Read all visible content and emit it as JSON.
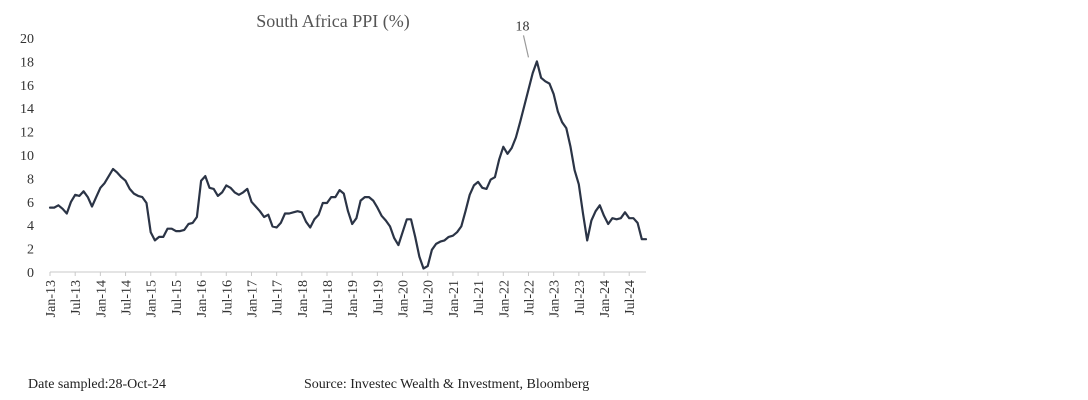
{
  "chart_data": {
    "type": "line",
    "title": "South Africa PPI (%)",
    "xlabel": "",
    "ylabel": "",
    "ylim": [
      0,
      20
    ],
    "yticks": [
      "0",
      "2",
      "4",
      "6",
      "8",
      "10",
      "12",
      "14",
      "16",
      "18",
      "20"
    ],
    "xticks": [
      "Jan-13",
      "Jul-13",
      "Jan-14",
      "Jul-14",
      "Jan-15",
      "Jul-15",
      "Jan-16",
      "Jul-16",
      "Jan-17",
      "Jul-17",
      "Jan-18",
      "Jul-18",
      "Jan-19",
      "Jul-19",
      "Jan-20",
      "Jul-20",
      "Jan-21",
      "Jul-21",
      "Jan-22",
      "Jul-22",
      "Jan-23",
      "Jul-23",
      "Jan-24",
      "Jul-24"
    ],
    "grid": false,
    "line_color": "#2b3446",
    "annotation": {
      "label": "18",
      "x": "Jul-22",
      "y": 18
    },
    "series": [
      {
        "start": "Jan-13",
        "frequency": "monthly",
        "values": [
          5.5,
          5.5,
          5.7,
          5.4,
          5.0,
          6.0,
          6.6,
          6.5,
          6.9,
          6.4,
          5.6,
          6.4,
          7.2,
          7.6,
          8.2,
          8.8,
          8.5,
          8.1,
          7.8,
          7.1,
          6.7,
          6.5,
          6.4,
          5.9,
          3.4,
          2.7,
          3.0,
          3.0,
          3.7,
          3.7,
          3.5,
          3.5,
          3.6,
          4.1,
          4.2,
          4.7,
          7.8,
          8.2,
          7.2,
          7.1,
          6.5,
          6.8,
          7.4,
          7.2,
          6.8,
          6.6,
          6.8,
          7.1,
          6.0,
          5.6,
          5.2,
          4.7,
          4.9,
          3.9,
          3.8,
          4.2,
          5.0,
          5.0,
          5.1,
          5.2,
          5.1,
          4.3,
          3.8,
          4.5,
          4.9,
          5.9,
          5.9,
          6.4,
          6.4,
          7.0,
          6.7,
          5.2,
          4.1,
          4.6,
          6.1,
          6.4,
          6.4,
          6.1,
          5.5,
          4.8,
          4.4,
          3.9,
          2.9,
          2.3,
          3.4,
          4.5,
          4.5,
          3.0,
          1.3,
          0.3,
          0.5,
          1.9,
          2.4,
          2.6,
          2.7,
          3.0,
          3.1,
          3.4,
          3.9,
          5.2,
          6.6,
          7.4,
          7.7,
          7.2,
          7.1,
          7.9,
          8.1,
          9.6,
          10.7,
          10.1,
          10.6,
          11.5,
          12.8,
          14.2,
          15.6,
          17.0,
          18.0,
          16.6,
          16.3,
          16.1,
          15.2,
          13.7,
          12.8,
          12.3,
          10.7,
          8.7,
          7.5,
          5.0,
          2.7,
          4.4,
          5.2,
          5.7,
          4.8,
          4.1,
          4.6,
          4.5,
          4.6,
          5.1,
          4.6,
          4.6,
          4.2,
          2.8,
          2.8
        ]
      }
    ]
  },
  "footer": {
    "date_note": "Date sampled:28-Oct-24",
    "source_note": "Source: Investec Wealth & Investment, Bloomberg"
  }
}
